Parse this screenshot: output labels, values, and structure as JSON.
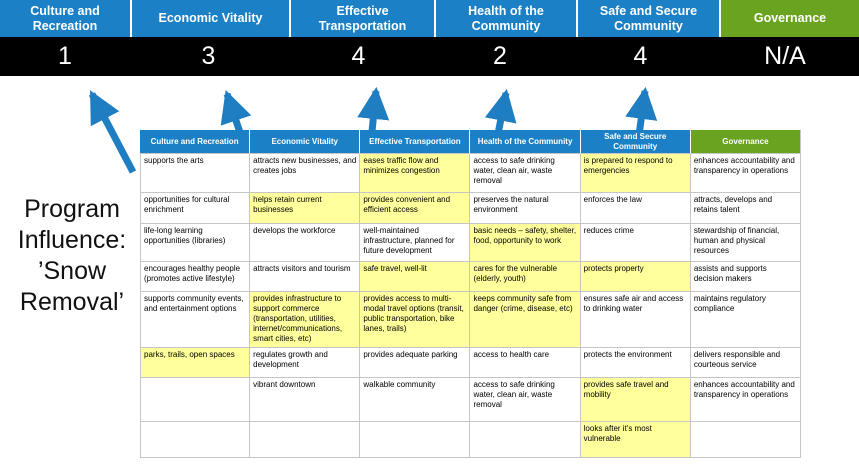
{
  "colors": {
    "pillar_blue": "#1B80C5",
    "governance_green": "#69A31F",
    "score_band_bg": "#000000",
    "highlight_yellow": "#FFFF9C",
    "arrow_blue": "#1F7EC2",
    "grid_border": "#C6C6C6"
  },
  "banner": {
    "columns": [
      {
        "label": "Culture and Recreation",
        "score": "1",
        "accent": "blue"
      },
      {
        "label": "Economic Vitality",
        "score": "3",
        "accent": "blue"
      },
      {
        "label": "Effective Transportation",
        "score": "4",
        "accent": "blue"
      },
      {
        "label": "Health of the Community",
        "score": "2",
        "accent": "blue"
      },
      {
        "label": "Safe and Secure Community",
        "score": "4",
        "accent": "blue"
      },
      {
        "label": "Governance",
        "score": "N/A",
        "accent": "green"
      }
    ]
  },
  "program_label": {
    "lines": [
      "Program",
      "Influence:",
      "’Snow",
      "Removal’"
    ]
  },
  "icons": {
    "arrow": "up-arrow"
  },
  "matrix": {
    "headers": [
      {
        "label": "Culture and Recreation",
        "accent": "blue"
      },
      {
        "label": "Economic Vitality",
        "accent": "blue"
      },
      {
        "label": "Effective Transportation",
        "accent": "blue"
      },
      {
        "label": "Health of the Community",
        "accent": "blue"
      },
      {
        "label": "Safe and Secure Community",
        "accent": "blue"
      },
      {
        "label": "Governance",
        "accent": "green"
      }
    ],
    "rows": [
      {
        "cells": [
          {
            "text": "supports the arts",
            "highlight": false
          },
          {
            "text": "attracts new businesses, and creates jobs",
            "highlight": false
          },
          {
            "text": "eases traffic flow and minimizes congestion",
            "highlight": true
          },
          {
            "text": "access to safe drinking water, clean air, waste removal",
            "highlight": false
          },
          {
            "text": "is prepared to respond to emergencies",
            "highlight": true
          },
          {
            "text": "enhances accountability and transparency in operations",
            "highlight": false
          }
        ]
      },
      {
        "cells": [
          {
            "text": "opportunities for cultural enrichment",
            "highlight": false
          },
          {
            "text": "helps retain current businesses",
            "highlight": true
          },
          {
            "text": "provides convenient and efficient access",
            "highlight": true
          },
          {
            "text": "preserves the natural environment",
            "highlight": false
          },
          {
            "text": "enforces the law",
            "highlight": false
          },
          {
            "text": "attracts, develops and retains talent",
            "highlight": false
          }
        ]
      },
      {
        "cells": [
          {
            "text": "life-long learning opportunities (libraries)",
            "highlight": false
          },
          {
            "text": "develops the workforce",
            "highlight": false
          },
          {
            "text": "well-maintained infrastructure, planned for future development",
            "highlight": false
          },
          {
            "text": "basic needs – safety, shelter, food, opportunity to work",
            "highlight": true
          },
          {
            "text": "reduces crime",
            "highlight": false
          },
          {
            "text": "stewardship of financial, human and physical resources",
            "highlight": false
          }
        ]
      },
      {
        "cells": [
          {
            "text": "encourages healthy people (promotes active lifestyle)",
            "highlight": false
          },
          {
            "text": "attracts visitors and tourism",
            "highlight": false
          },
          {
            "text": "safe travel, well-lit",
            "highlight": true
          },
          {
            "text": "cares for the vulnerable (elderly, youth)",
            "highlight": true
          },
          {
            "text": "protects property",
            "highlight": true
          },
          {
            "text": "assists and supports decision makers",
            "highlight": false
          }
        ]
      },
      {
        "cells": [
          {
            "text": "supports community events, and entertainment options",
            "highlight": false
          },
          {
            "text": "provides infrastructure to support commerce (transportation, utilities, internet/communications, smart cities, etc)",
            "highlight": true
          },
          {
            "text": "provides access to multi-modal travel options (transit, public transportation, bike lanes, trails)",
            "highlight": true
          },
          {
            "text": "keeps community safe from danger (crime, disease, etc)",
            "highlight": true
          },
          {
            "text": "ensures safe air and access to drinking water",
            "highlight": false
          },
          {
            "text": "maintains regulatory compliance",
            "highlight": false
          }
        ]
      },
      {
        "cells": [
          {
            "text": "parks, trails, open spaces",
            "highlight": true
          },
          {
            "text": "regulates growth and development",
            "highlight": false
          },
          {
            "text": "provides adequate parking",
            "highlight": false
          },
          {
            "text": "access to health care",
            "highlight": false
          },
          {
            "text": "protects the environment",
            "highlight": false
          },
          {
            "text": "delivers responsible and courteous service",
            "highlight": false
          }
        ]
      },
      {
        "cells": [
          {
            "text": "",
            "highlight": false
          },
          {
            "text": "vibrant downtown",
            "highlight": false
          },
          {
            "text": "walkable community",
            "highlight": false
          },
          {
            "text": "access to safe drinking water, clean air, waste removal",
            "highlight": false
          },
          {
            "text": "provides safe travel and mobility",
            "highlight": true
          },
          {
            "text": "enhances accountability and transparency in operations",
            "highlight": false
          }
        ]
      },
      {
        "cells": [
          {
            "text": "",
            "highlight": false
          },
          {
            "text": "",
            "highlight": false
          },
          {
            "text": "",
            "highlight": false
          },
          {
            "text": "",
            "highlight": false
          },
          {
            "text": "looks after it's most vulnerable",
            "highlight": true
          },
          {
            "text": "",
            "highlight": false
          }
        ]
      }
    ]
  }
}
